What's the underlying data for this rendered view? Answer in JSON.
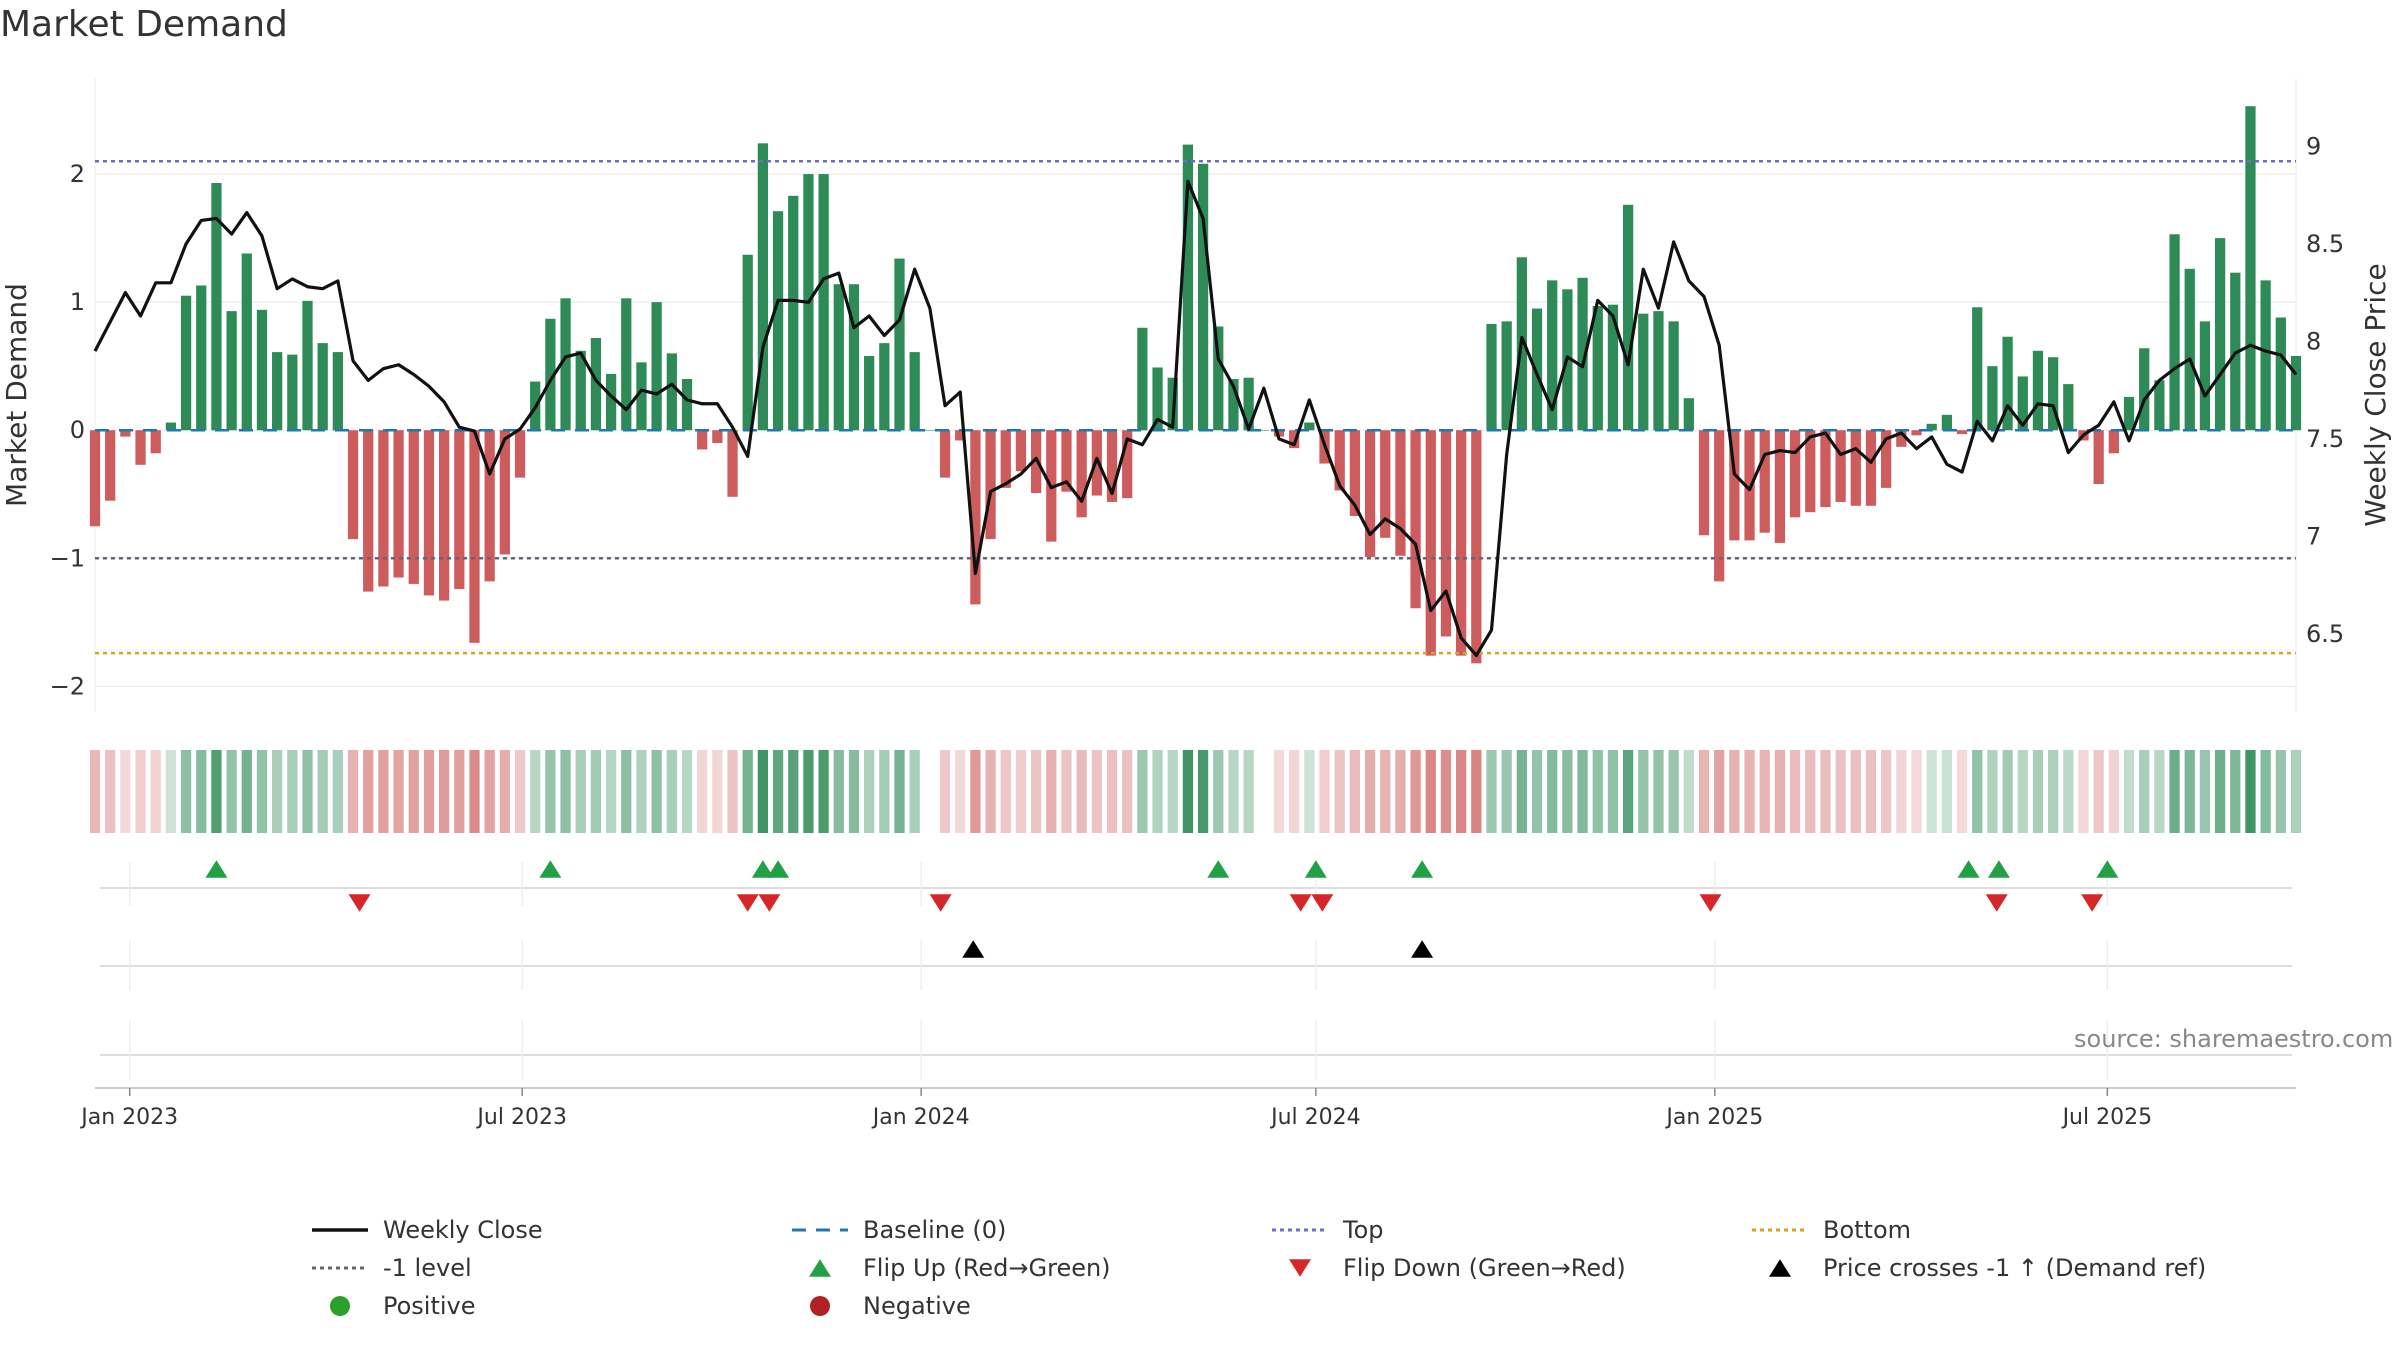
{
  "title": "Market Demand",
  "source_note": "source: sharemaestro.com",
  "colors": {
    "positive_bar": "#2e8b57",
    "negative_bar": "#cd5c5c",
    "price_line": "#111111",
    "baseline": "#1f77b4",
    "top_line": "#6a6ad8",
    "minus1_line": "#666677",
    "bottom_line": "#e0a020",
    "flip_up": "#22a045",
    "flip_down": "#d62728",
    "cross_marker": "#000000",
    "positive_dot": "#2ca02c",
    "negative_dot": "#b22222"
  },
  "legend": [
    {
      "label": "Weekly Close",
      "symbol": "line-solid",
      "color": "#111111"
    },
    {
      "label": "Baseline (0)",
      "symbol": "line-dash",
      "color": "#1f77b4"
    },
    {
      "label": "Top",
      "symbol": "line-dot",
      "color": "#6a6ad8"
    },
    {
      "label": "Bottom",
      "symbol": "line-dot",
      "color": "#e0a020"
    },
    {
      "label": "-1 level",
      "symbol": "line-dot",
      "color": "#666677"
    },
    {
      "label": "Flip Up (Red→Green)",
      "symbol": "triangle-up",
      "color": "#22a045"
    },
    {
      "label": "Flip Down (Green→Red)",
      "symbol": "triangle-down",
      "color": "#d62728"
    },
    {
      "label": "Price crosses -1 ↑ (Demand ref)",
      "symbol": "triangle-up",
      "color": "#000000"
    },
    {
      "label": "Positive",
      "symbol": "circle",
      "color": "#2ca02c"
    },
    {
      "label": "Negative",
      "symbol": "circle",
      "color": "#b22222"
    }
  ],
  "chart_data": {
    "type": "bar",
    "title": "Market Demand",
    "ylabel": "Market Demand",
    "y2label": "Weekly Close Price",
    "ylim": [
      -2.2,
      2.75
    ],
    "y2lim": [
      6.1,
      9.35
    ],
    "yticks": [
      2,
      1,
      0,
      -1,
      -2
    ],
    "ytick_labels": [
      "2",
      "1",
      "0",
      "−1",
      "−2"
    ],
    "y2ticks": [
      9,
      8.5,
      8,
      7.5,
      7,
      6.5
    ],
    "y2tick_labels": [
      "9",
      "8.5",
      "8",
      "7.5",
      "7",
      "6.5"
    ],
    "reference_lines": {
      "baseline": 0,
      "top": 2.1,
      "minus_one": -1,
      "bottom": -1.74
    },
    "x_start": "2022-12-16",
    "x_end": "2025-09-26",
    "xticks": [
      {
        "date": "2023-01-01",
        "label": "Jan 2023"
      },
      {
        "date": "2023-07-01",
        "label": "Jul 2023"
      },
      {
        "date": "2024-01-01",
        "label": "Jan 2024"
      },
      {
        "date": "2024-07-01",
        "label": "Jul 2024"
      },
      {
        "date": "2025-01-01",
        "label": "Jan 2025"
      },
      {
        "date": "2025-07-01",
        "label": "Jul 2025"
      }
    ],
    "week_start": "2022-12-16",
    "demand": [
      -0.75,
      -0.55,
      -0.05,
      -0.27,
      -0.18,
      0.06,
      1.05,
      1.13,
      1.93,
      0.93,
      1.38,
      0.94,
      0.61,
      0.59,
      1.01,
      0.68,
      0.61,
      -0.85,
      -1.26,
      -1.22,
      -1.15,
      -1.2,
      -1.29,
      -1.33,
      -1.24,
      -1.66,
      -1.18,
      -0.97,
      -0.37,
      0.38,
      0.87,
      1.03,
      0.62,
      0.72,
      0.44,
      1.03,
      0.53,
      1.0,
      0.6,
      0.4,
      -0.15,
      -0.1,
      -0.52,
      1.37,
      2.24,
      1.71,
      1.83,
      2.0,
      2.0,
      1.14,
      1.14,
      0.58,
      0.68,
      1.34,
      0.61,
      0.0,
      -0.37,
      -0.08,
      -1.36,
      -0.85,
      -0.45,
      -0.32,
      -0.49,
      -0.87,
      -0.48,
      -0.68,
      -0.51,
      -0.56,
      -0.53,
      0.8,
      0.49,
      0.41,
      2.23,
      2.08,
      0.81,
      0.4,
      0.41,
      0.0,
      -0.05,
      -0.14,
      0.06,
      -0.26,
      -0.47,
      -0.67,
      -0.99,
      -0.84,
      -0.98,
      -1.39,
      -1.76,
      -1.61,
      -1.76,
      -1.82,
      0.83,
      0.85,
      1.35,
      0.95,
      1.17,
      1.1,
      1.19,
      0.97,
      0.98,
      1.76,
      0.91,
      0.93,
      0.85,
      0.25,
      -0.82,
      -1.18,
      -0.86,
      -0.86,
      -0.8,
      -0.88,
      -0.68,
      -0.64,
      -0.6,
      -0.56,
      -0.59,
      -0.59,
      -0.45,
      -0.13,
      -0.04,
      0.05,
      0.12,
      -0.03,
      0.96,
      0.5,
      0.73,
      0.42,
      0.62,
      0.57,
      0.36,
      -0.08,
      -0.42,
      -0.18,
      0.26,
      0.64,
      0.39,
      1.53,
      1.26,
      0.85,
      1.5,
      1.23,
      2.53,
      1.17,
      0.88,
      0.58
    ],
    "weekly_close": [
      7.95,
      8.1,
      8.25,
      8.13,
      8.3,
      8.3,
      8.5,
      8.62,
      8.63,
      8.55,
      8.66,
      8.54,
      8.27,
      8.32,
      8.28,
      8.27,
      8.31,
      7.9,
      7.8,
      7.86,
      7.88,
      7.83,
      7.77,
      7.69,
      7.56,
      7.54,
      7.32,
      7.5,
      7.55,
      7.66,
      7.8,
      7.92,
      7.94,
      7.8,
      7.72,
      7.65,
      7.75,
      7.73,
      7.78,
      7.7,
      7.68,
      7.68,
      7.56,
      7.41,
      7.97,
      8.21,
      8.21,
      8.2,
      8.32,
      8.35,
      8.07,
      8.13,
      8.03,
      8.11,
      8.37,
      8.17,
      7.67,
      7.74,
      6.81,
      7.23,
      7.27,
      7.32,
      7.4,
      7.25,
      7.28,
      7.18,
      7.4,
      7.22,
      7.5,
      7.47,
      7.6,
      7.56,
      8.82,
      8.63,
      7.91,
      7.77,
      7.55,
      7.76,
      7.5,
      7.47,
      7.7,
      7.47,
      7.26,
      7.16,
      7.01,
      7.09,
      7.04,
      6.96,
      6.62,
      6.72,
      6.48,
      6.39,
      6.52,
      7.42,
      8.02,
      7.83,
      7.65,
      7.92,
      7.87,
      8.21,
      8.13,
      7.88,
      8.37,
      8.17,
      8.51,
      8.31,
      8.23,
      7.98,
      7.32,
      7.24,
      7.42,
      7.44,
      7.43,
      7.51,
      7.53,
      7.42,
      7.45,
      7.38,
      7.5,
      7.53,
      7.45,
      7.51,
      7.37,
      7.33,
      7.59,
      7.49,
      7.67,
      7.57,
      7.68,
      7.67,
      7.43,
      7.52,
      7.57,
      7.69,
      7.49,
      7.7,
      7.8,
      7.86,
      7.91,
      7.72,
      7.83,
      7.94,
      7.98,
      7.95,
      7.93,
      7.83
    ],
    "strip_ratings": [
      -0.75,
      -0.55,
      -0.05,
      -0.27,
      -0.18,
      0.06,
      1.05,
      1.13,
      1.93,
      0.93,
      1.38,
      0.94,
      0.61,
      0.59,
      1.01,
      0.68,
      0.61,
      -0.85,
      -1.26,
      -1.22,
      -1.15,
      -1.2,
      -1.29,
      -1.33,
      -1.24,
      -1.66,
      -1.18,
      -0.97,
      -0.37,
      0.38,
      0.87,
      1.03,
      0.62,
      0.72,
      0.44,
      1.03,
      0.53,
      1.0,
      0.6,
      0.4,
      -0.15,
      -0.1,
      -0.52,
      1.37,
      2.24,
      1.71,
      1.83,
      2.0,
      2.0,
      1.14,
      1.14,
      0.58,
      0.68,
      1.34,
      0.61,
      0.0,
      -0.37,
      -0.08,
      -1.36,
      -0.85,
      -0.45,
      -0.32,
      -0.49,
      -0.87,
      -0.48,
      -0.68,
      -0.51,
      -0.56,
      -0.53,
      0.8,
      0.49,
      0.41,
      2.23,
      2.08,
      0.81,
      0.4,
      0.41,
      0.0,
      -0.05,
      -0.14,
      0.06,
      -0.26,
      -0.47,
      -0.67,
      -0.99,
      -0.84,
      -0.98,
      -1.39,
      -1.76,
      -1.61,
      -1.76,
      -1.82,
      0.83,
      0.85,
      1.35,
      0.95,
      1.17,
      1.1,
      1.19,
      0.97,
      0.98,
      1.76,
      0.91,
      0.93,
      0.85,
      0.25,
      -0.82,
      -1.18,
      -0.86,
      -0.86,
      -0.8,
      -0.88,
      -0.68,
      -0.64,
      -0.6,
      -0.56,
      -0.59,
      -0.59,
      -0.45,
      -0.13,
      -0.04,
      0.05,
      0.12,
      -0.03,
      0.96,
      0.5,
      0.73,
      0.42,
      0.62,
      0.57,
      0.36,
      -0.08,
      -0.42,
      -0.18,
      0.26,
      0.64,
      0.39,
      1.53,
      1.26,
      0.85,
      1.5,
      1.23,
      2.53,
      1.17,
      0.88,
      0.58
    ],
    "flip_up_dates": [
      "2023-02-10",
      "2023-07-14",
      "2023-10-20",
      "2023-10-27",
      "2024-05-17",
      "2024-07-01",
      "2024-08-19",
      "2025-04-28",
      "2025-05-12",
      "2025-07-01"
    ],
    "flip_down_dates": [
      "2023-04-17",
      "2023-10-13",
      "2023-10-23",
      "2024-01-10",
      "2024-06-24",
      "2024-07-04",
      "2024-12-30",
      "2025-05-11",
      "2025-06-24"
    ],
    "price_cross_dates": [
      "2024-01-25",
      "2024-08-19"
    ]
  }
}
